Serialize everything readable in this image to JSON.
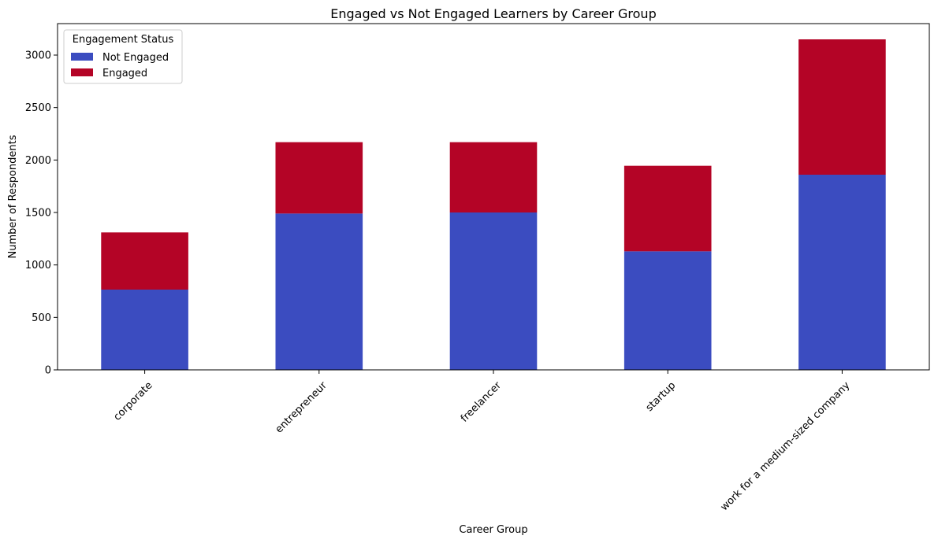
{
  "chart_data": {
    "type": "bar",
    "stacked": true,
    "title": "Engaged vs Not Engaged Learners by Career Group",
    "xlabel": "Career Group",
    "ylabel": "Number of Respondents",
    "categories": [
      "corporate",
      "entrepreneur",
      "freelancer",
      "startup",
      "work for a medium-sized company"
    ],
    "series": [
      {
        "name": "Not Engaged",
        "color": "#3b4cc0",
        "values": [
          765,
          1490,
          1500,
          1130,
          1860
        ]
      },
      {
        "name": "Engaged",
        "color": "#b40426",
        "values": [
          545,
          680,
          670,
          815,
          1290
        ]
      }
    ],
    "ylim": [
      0,
      3300
    ],
    "yticks": [
      0,
      500,
      1000,
      1500,
      2000,
      2500,
      3000
    ],
    "grid": false,
    "legend": {
      "title": "Engagement Status",
      "placement": "top-left"
    }
  }
}
